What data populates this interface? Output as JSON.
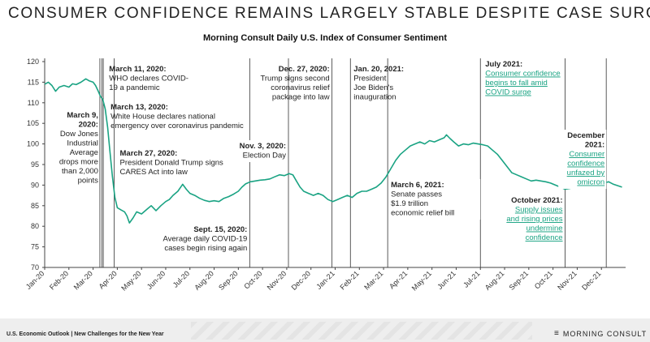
{
  "page": {
    "headline": "CONSUMER CONFIDENCE REMAINS LARGELY STABLE DESPITE CASE SURGE",
    "footer_text": "U.S. Economic Outlook | New Challenges for the New Year",
    "brand": "MORNING CONSULT"
  },
  "colors": {
    "line": "#1aa383",
    "accent_text": "#1aa383",
    "event_line": "#333333",
    "grid": "#bbbbbb"
  },
  "chart_data": {
    "type": "line",
    "title": "Morning Consult Daily U.S. Index of Consumer Sentiment",
    "xlabel": "",
    "ylabel": "",
    "ylim": [
      70,
      120
    ],
    "yticks": [
      70,
      75,
      80,
      85,
      90,
      95,
      100,
      105,
      110,
      115,
      120
    ],
    "x_range_months": [
      0,
      24
    ],
    "x_tick_labels": [
      "Jan-20",
      "Feb-20",
      "Mar-20",
      "Apr-20",
      "May-20",
      "Jun-20",
      "Jul-20",
      "Aug-20",
      "Sep-20",
      "Oct-20",
      "Nov-20",
      "Dec-20",
      "Jan-21",
      "Feb-21",
      "Mar-21",
      "Apr-21",
      "May-21",
      "Jun-21",
      "Jul-21",
      "Aug-21",
      "Sep-21",
      "Oct-21",
      "Nov-21",
      "Dec-21"
    ],
    "series": [
      {
        "name": "Index of Consumer Sentiment",
        "points": [
          [
            0.0,
            114.5
          ],
          [
            0.15,
            115.0
          ],
          [
            0.3,
            114.2
          ],
          [
            0.45,
            112.8
          ],
          [
            0.6,
            113.8
          ],
          [
            0.8,
            114.2
          ],
          [
            1.0,
            113.8
          ],
          [
            1.15,
            114.6
          ],
          [
            1.3,
            114.4
          ],
          [
            1.5,
            115.0
          ],
          [
            1.7,
            115.8
          ],
          [
            1.85,
            115.3
          ],
          [
            2.0,
            115.0
          ],
          [
            2.1,
            114.2
          ],
          [
            2.2,
            113.0
          ],
          [
            2.3,
            111.6
          ],
          [
            2.4,
            110.8
          ],
          [
            2.5,
            108.5
          ],
          [
            2.6,
            104.0
          ],
          [
            2.7,
            98.0
          ],
          [
            2.8,
            92.0
          ],
          [
            2.9,
            87.0
          ],
          [
            3.0,
            84.5
          ],
          [
            3.15,
            84.0
          ],
          [
            3.3,
            83.5
          ],
          [
            3.4,
            82.5
          ],
          [
            3.5,
            80.8
          ],
          [
            3.65,
            82.0
          ],
          [
            3.8,
            83.5
          ],
          [
            4.0,
            83.0
          ],
          [
            4.2,
            84.0
          ],
          [
            4.4,
            85.0
          ],
          [
            4.6,
            83.8
          ],
          [
            4.8,
            85.0
          ],
          [
            5.0,
            86.0
          ],
          [
            5.15,
            86.5
          ],
          [
            5.3,
            87.5
          ],
          [
            5.5,
            88.5
          ],
          [
            5.7,
            90.2
          ],
          [
            5.85,
            89.0
          ],
          [
            6.0,
            88.0
          ],
          [
            6.2,
            87.5
          ],
          [
            6.4,
            86.8
          ],
          [
            6.6,
            86.3
          ],
          [
            6.8,
            86.0
          ],
          [
            7.0,
            86.2
          ],
          [
            7.2,
            86.0
          ],
          [
            7.4,
            86.8
          ],
          [
            7.6,
            87.2
          ],
          [
            7.8,
            87.8
          ],
          [
            8.0,
            88.5
          ],
          [
            8.15,
            89.5
          ],
          [
            8.3,
            90.3
          ],
          [
            8.5,
            90.8
          ],
          [
            8.7,
            91.0
          ],
          [
            8.9,
            91.2
          ],
          [
            9.1,
            91.3
          ],
          [
            9.3,
            91.5
          ],
          [
            9.5,
            92.0
          ],
          [
            9.7,
            92.5
          ],
          [
            9.9,
            92.3
          ],
          [
            10.1,
            92.8
          ],
          [
            10.25,
            92.5
          ],
          [
            10.4,
            91.0
          ],
          [
            10.55,
            89.5
          ],
          [
            10.7,
            88.5
          ],
          [
            10.9,
            88.0
          ],
          [
            11.1,
            87.5
          ],
          [
            11.3,
            88.0
          ],
          [
            11.5,
            87.5
          ],
          [
            11.7,
            86.5
          ],
          [
            11.9,
            86.0
          ],
          [
            12.1,
            86.5
          ],
          [
            12.3,
            87.0
          ],
          [
            12.5,
            87.5
          ],
          [
            12.7,
            87.0
          ],
          [
            12.9,
            88.0
          ],
          [
            13.1,
            88.5
          ],
          [
            13.3,
            88.5
          ],
          [
            13.5,
            89.0
          ],
          [
            13.7,
            89.5
          ],
          [
            13.9,
            90.5
          ],
          [
            14.1,
            92.0
          ],
          [
            14.3,
            94.0
          ],
          [
            14.5,
            96.0
          ],
          [
            14.7,
            97.5
          ],
          [
            14.9,
            98.5
          ],
          [
            15.1,
            99.5
          ],
          [
            15.3,
            100.0
          ],
          [
            15.5,
            100.5
          ],
          [
            15.7,
            100.0
          ],
          [
            15.9,
            100.8
          ],
          [
            16.1,
            100.5
          ],
          [
            16.3,
            101.0
          ],
          [
            16.5,
            101.5
          ],
          [
            16.6,
            102.2
          ],
          [
            16.75,
            101.3
          ],
          [
            16.9,
            100.5
          ],
          [
            17.1,
            99.5
          ],
          [
            17.3,
            100.0
          ],
          [
            17.5,
            99.8
          ],
          [
            17.7,
            100.2
          ],
          [
            17.9,
            100.0
          ],
          [
            18.1,
            99.8
          ],
          [
            18.3,
            99.5
          ],
          [
            18.5,
            98.5
          ],
          [
            18.7,
            97.5
          ],
          [
            18.9,
            96.0
          ],
          [
            19.1,
            94.5
          ],
          [
            19.3,
            93.0
          ],
          [
            19.5,
            92.5
          ],
          [
            19.7,
            92.0
          ],
          [
            19.9,
            91.5
          ],
          [
            20.1,
            91.0
          ],
          [
            20.3,
            91.2
          ],
          [
            20.5,
            91.0
          ],
          [
            20.7,
            90.8
          ],
          [
            20.9,
            90.5
          ],
          [
            21.1,
            90.0
          ],
          [
            21.3,
            89.5
          ],
          [
            21.5,
            89.0
          ],
          [
            21.7,
            89.2
          ],
          [
            21.9,
            89.5
          ],
          [
            22.1,
            89.8
          ],
          [
            22.3,
            90.0
          ],
          [
            22.5,
            89.8
          ],
          [
            22.7,
            90.2
          ],
          [
            22.9,
            90.0
          ],
          [
            23.1,
            90.5
          ],
          [
            23.3,
            90.8
          ],
          [
            23.5,
            90.2
          ],
          [
            23.7,
            89.8
          ],
          [
            23.85,
            89.5
          ]
        ]
      }
    ],
    "annotations": [
      {
        "x": 2.28,
        "lines": [
          {
            "t": "March 9,",
            "b": true
          },
          {
            "t": "2020:",
            "b": true
          },
          {
            "t": "Dow Jones"
          },
          {
            "t": "Industrial"
          },
          {
            "t": "Average"
          },
          {
            "t": "drops more"
          },
          {
            "t": "than 2,000"
          },
          {
            "t": "points"
          }
        ]
      },
      {
        "x": 2.36,
        "lines": [
          {
            "t": "March 11, 2020:",
            "b": true
          },
          {
            "t": "WHO declares COVID-"
          },
          {
            "t": "19 a pandemic"
          }
        ]
      },
      {
        "x": 2.42,
        "lines": [
          {
            "t": "March 13, 2020:",
            "b": true
          },
          {
            "t": "White House declares national"
          },
          {
            "t": "emergency over coronavirus pandemic"
          }
        ]
      },
      {
        "x": 2.87,
        "lines": [
          {
            "t": "March 27, 2020:",
            "b": true
          },
          {
            "t": "President Donald Trump signs"
          },
          {
            "t": "CARES Act into law"
          }
        ]
      },
      {
        "x": 8.47,
        "lines": [
          {
            "t": "Sept. 15, 2020:",
            "b": true
          },
          {
            "t": "Average daily COVID-19"
          },
          {
            "t": "cases begin rising again"
          }
        ]
      },
      {
        "x": 10.07,
        "lines": [
          {
            "t": "Nov. 3, 2020:",
            "b": true
          },
          {
            "t": "Election Day"
          }
        ]
      },
      {
        "x": 11.87,
        "lines": [
          {
            "t": "Dec. 27, 2020:",
            "b": true
          },
          {
            "t": "Trump signs second"
          },
          {
            "t": "coronavirus relief"
          },
          {
            "t": "package into law"
          }
        ]
      },
      {
        "x": 12.63,
        "lines": [
          {
            "t": "Jan. 20, 2021:",
            "b": true
          },
          {
            "t": "President"
          },
          {
            "t": "Joe Biden's"
          },
          {
            "t": "inauguration"
          }
        ]
      },
      {
        "x": 14.17,
        "lines": [
          {
            "t": "March 6, 2021:",
            "b": true
          },
          {
            "t": "Senate passes"
          },
          {
            "t": "$1.9 trillion"
          },
          {
            "t": "economic relief bill"
          }
        ]
      },
      {
        "x": 18.0,
        "lines": [
          {
            "t": "July 2021:",
            "b": true
          },
          {
            "t": "Consumer confidence",
            "g": true
          },
          {
            "t": "begins to fall amid",
            "g": true
          },
          {
            "t": "COVID surge",
            "g": true
          }
        ]
      },
      {
        "x": 21.5,
        "lines": [
          {
            "t": "October 2021:",
            "b": true
          },
          {
            "t": "Supply issues",
            "g": true
          },
          {
            "t": "and rising prices",
            "g": true
          },
          {
            "t": "undermine",
            "g": true
          },
          {
            "t": "confidence",
            "g": true
          }
        ]
      },
      {
        "x": 23.2,
        "lines": [
          {
            "t": "December",
            "b": true
          },
          {
            "t": "2021:",
            "b": true
          },
          {
            "t": "Consumer",
            "g": true
          },
          {
            "t": "confidence",
            "g": true
          },
          {
            "t": "unfazed by",
            "g": true
          },
          {
            "t": "omicron",
            "g": true
          }
        ]
      }
    ]
  }
}
